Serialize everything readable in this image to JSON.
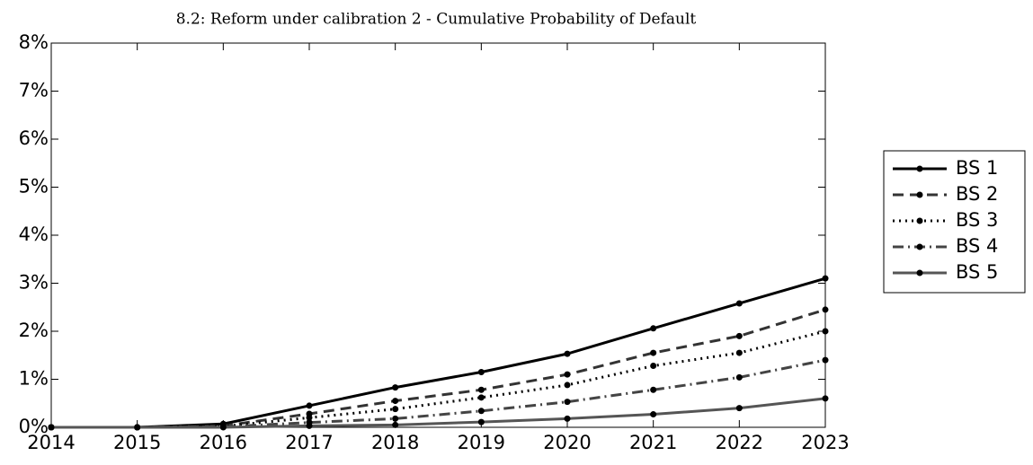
{
  "chart_data": {
    "type": "line",
    "title": "8.2: Reform under calibration 2 - Cumulative Probability of Default",
    "x": [
      2014,
      2015,
      2016,
      2017,
      2018,
      2019,
      2020,
      2021,
      2022,
      2023
    ],
    "xlim": [
      2014,
      2023
    ],
    "xticks": [
      2014,
      2015,
      2016,
      2017,
      2018,
      2019,
      2020,
      2021,
      2022,
      2023
    ],
    "ylim": [
      0,
      8
    ],
    "yticks": [
      {
        "value": 0,
        "label": "0%"
      },
      {
        "value": 1,
        "label": "1%"
      },
      {
        "value": 2,
        "label": "2%"
      },
      {
        "value": 3,
        "label": "3%"
      },
      {
        "value": 4,
        "label": "4%"
      },
      {
        "value": 5,
        "label": "5%"
      },
      {
        "value": 6,
        "label": "6%"
      },
      {
        "value": 7,
        "label": "7%"
      },
      {
        "value": 8,
        "label": "8%"
      }
    ],
    "legend": "outside right",
    "series": [
      {
        "name": "BS 1",
        "color": "#000000",
        "style": "solid",
        "values": [
          0,
          0,
          0.07,
          0.45,
          0.83,
          1.15,
          1.53,
          2.06,
          2.58,
          3.1
        ]
      },
      {
        "name": "BS 2",
        "color": "#333333",
        "style": "dashed",
        "values": [
          0,
          0,
          0.03,
          0.28,
          0.55,
          0.78,
          1.1,
          1.55,
          1.9,
          2.45
        ]
      },
      {
        "name": "BS 3",
        "color": "#000000",
        "style": "dotted",
        "values": [
          0,
          0,
          0.02,
          0.2,
          0.38,
          0.62,
          0.88,
          1.28,
          1.55,
          2.0
        ]
      },
      {
        "name": "BS 4",
        "color": "#444444",
        "style": "dashdot",
        "values": [
          0,
          0,
          0.01,
          0.1,
          0.18,
          0.34,
          0.53,
          0.78,
          1.04,
          1.4
        ]
      },
      {
        "name": "BS 5",
        "color": "#555555",
        "style": "solid",
        "values": [
          0,
          0,
          0,
          0.03,
          0.05,
          0.11,
          0.18,
          0.27,
          0.4,
          0.6
        ]
      }
    ]
  }
}
